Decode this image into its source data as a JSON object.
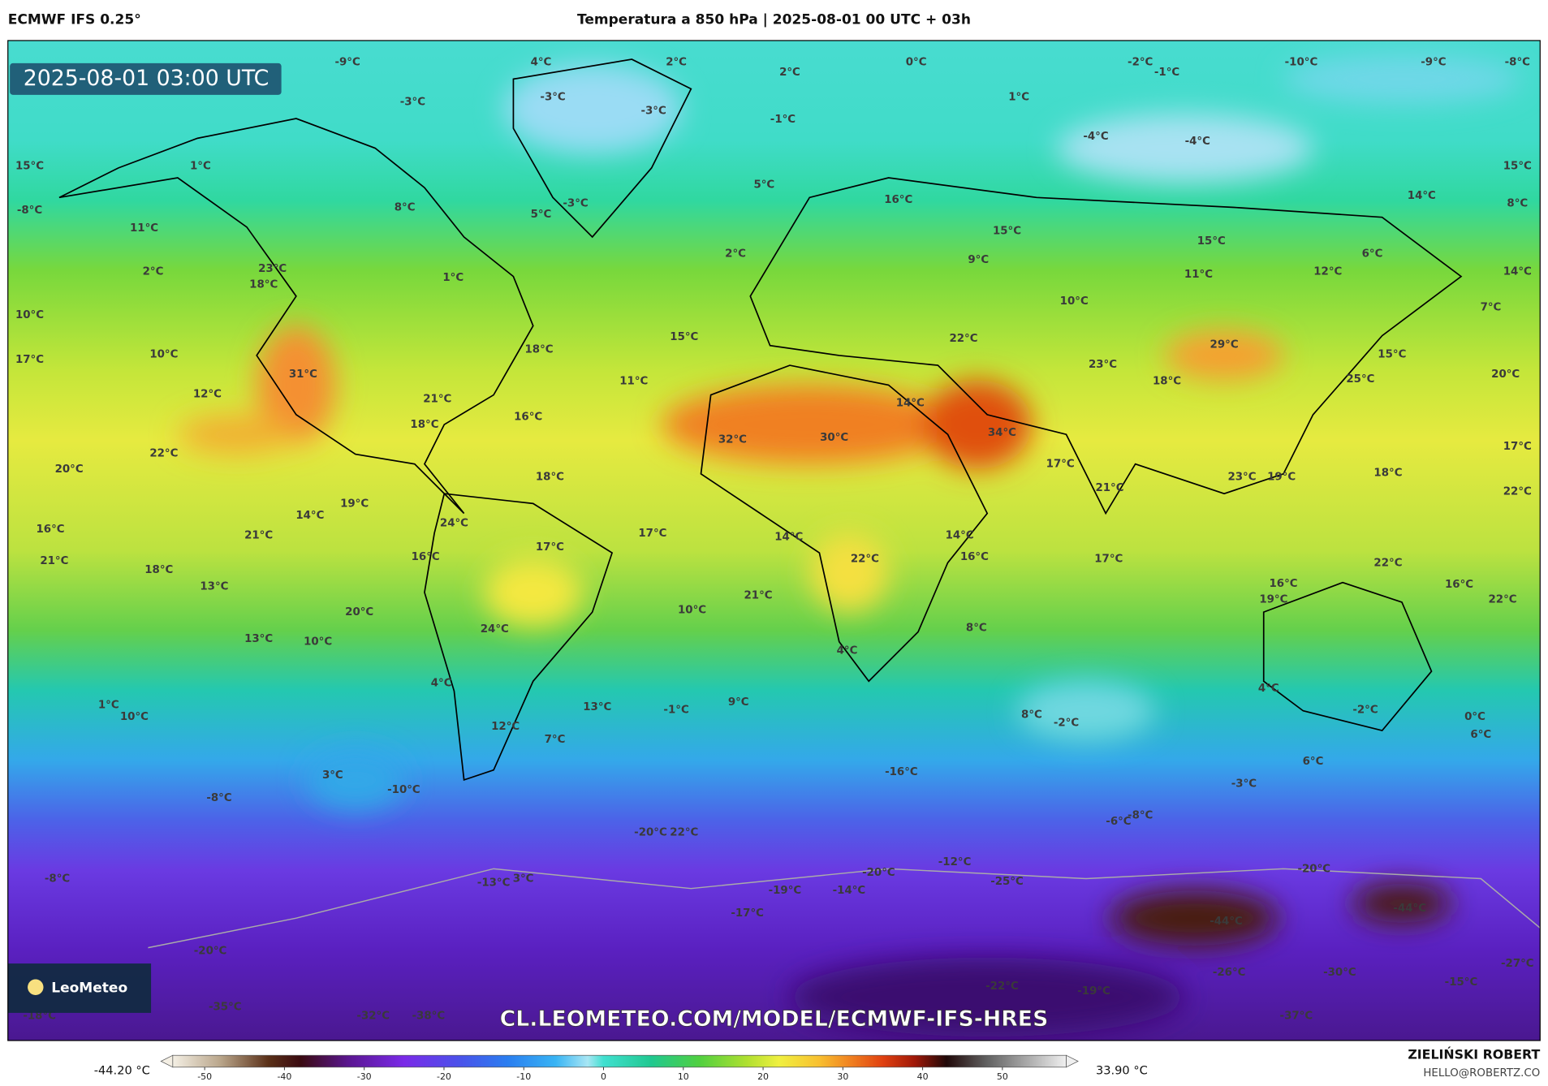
{
  "header": {
    "model": "ECMWF IFS 0.25°",
    "title": "Temperatura a 850 hPa | 2025-08-01 00 UTC + 03h",
    "timestamp": "2025-08-01 03:00 UTC"
  },
  "map_labels": [
    "-9°C",
    "4°C",
    "2°C",
    "2°C",
    "0°C",
    "-2°C",
    "-1°C",
    "-10°C",
    "-9°C",
    "-8°C",
    "-3°C",
    "-3°C",
    "-3°C",
    "-1°C",
    "1°C",
    "-4°C",
    "-4°C",
    "15°C",
    "1°C",
    "5°C",
    "-3°C",
    "16°C",
    "14°C",
    "15°C",
    "-8°C",
    "8°C",
    "5°C",
    "15°C",
    "15°C",
    "8°C",
    "11°C",
    "2°C",
    "23°C",
    "18°C",
    "1°C",
    "2°C",
    "9°C",
    "11°C",
    "12°C",
    "6°C",
    "14°C",
    "10°C",
    "10°C",
    "7°C",
    "17°C",
    "10°C",
    "18°C",
    "15°C",
    "22°C",
    "29°C",
    "15°C",
    "23°C",
    "12°C",
    "31°C",
    "21°C",
    "11°C",
    "18°C",
    "25°C",
    "20°C",
    "18°C",
    "16°C",
    "14°C",
    "32°C",
    "30°C",
    "34°C",
    "17°C",
    "22°C",
    "20°C",
    "18°C",
    "17°C",
    "23°C",
    "19°C",
    "18°C",
    "22°C",
    "21°C",
    "19°C",
    "14°C",
    "24°C",
    "16°C",
    "21°C",
    "17°C",
    "17°C",
    "14°C",
    "14°C",
    "22°C",
    "16°C",
    "17°C",
    "21°C",
    "16°C",
    "22°C",
    "18°C",
    "13°C",
    "16°C",
    "16°C",
    "19°C",
    "22°C",
    "21°C",
    "10°C",
    "20°C",
    "24°C",
    "8°C",
    "13°C",
    "10°C",
    "4°C",
    "4°C",
    "4°C",
    "1°C",
    "10°C",
    "13°C",
    "-1°C",
    "9°C",
    "8°C",
    "-2°C",
    "-2°C",
    "0°C",
    "6°C",
    "12°C",
    "7°C",
    "6°C",
    "3°C",
    "-16°C",
    "-10°C",
    "-3°C",
    "-8°C",
    "-6°C",
    "-8°C",
    "-20°C",
    "22°C",
    "-12°C",
    "-8°C",
    "-20°C",
    "-13°C",
    "3°C",
    "-25°C",
    "-20°C",
    "-19°C",
    "-14°C",
    "-17°C",
    "-44°C",
    "-44°C",
    "-20°C",
    "-27°C",
    "-26°C",
    "-30°C",
    "-15°C",
    "-22°C",
    "-19°C",
    "-35°C",
    "-18°C",
    "-32°C",
    "-38°C",
    "-37°C"
  ],
  "colorbar": {
    "min_label": "-44.20 °C",
    "max_label": "33.90 °C",
    "lim": [
      -54,
      58
    ],
    "ticks": [
      -50,
      -40,
      -30,
      -20,
      -10,
      0,
      10,
      20,
      30,
      40,
      50
    ],
    "stops": [
      {
        "value": -54,
        "color": "#f4efe4"
      },
      {
        "value": -48,
        "color": "#b9a58a"
      },
      {
        "value": -42,
        "color": "#5a3018"
      },
      {
        "value": -38,
        "color": "#3a0a10"
      },
      {
        "value": -32,
        "color": "#5a1690"
      },
      {
        "value": -25,
        "color": "#7a2ae8"
      },
      {
        "value": -18,
        "color": "#4a52ea"
      },
      {
        "value": -12,
        "color": "#2a7ef0"
      },
      {
        "value": -6,
        "color": "#38b4f4"
      },
      {
        "value": -2,
        "color": "#a8e6f4"
      },
      {
        "value": 0,
        "color": "#40e0d0"
      },
      {
        "value": 6,
        "color": "#20c890"
      },
      {
        "value": 12,
        "color": "#50d040"
      },
      {
        "value": 18,
        "color": "#b0e030"
      },
      {
        "value": 22,
        "color": "#f0f040"
      },
      {
        "value": 27,
        "color": "#f8c030"
      },
      {
        "value": 31,
        "color": "#f08020"
      },
      {
        "value": 35,
        "color": "#e04010"
      },
      {
        "value": 39,
        "color": "#a01808"
      },
      {
        "value": 43,
        "color": "#200808"
      },
      {
        "value": 48,
        "color": "#606060"
      },
      {
        "value": 58,
        "color": "#f0f0f0"
      }
    ]
  },
  "watermark": "CL.LEOMETEO.COM/MODEL/ECMWF-IFS-HRES",
  "logo": "LeoMeteo",
  "author": {
    "name": "ZIELIŃSKI ROBERT",
    "email": "HELLO@ROBERTZ.CO"
  }
}
